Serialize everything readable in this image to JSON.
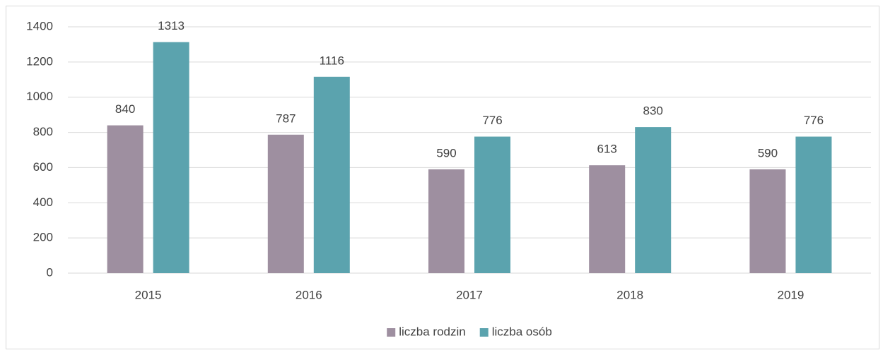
{
  "chart_data": {
    "type": "bar",
    "categories": [
      "2015",
      "2016",
      "2017",
      "2018",
      "2019"
    ],
    "series": [
      {
        "name": "liczba rodzin",
        "color": "#9e8fa0",
        "values": [
          840,
          787,
          590,
          613,
          590
        ]
      },
      {
        "name": "liczba osób",
        "color": "#5ba3ae",
        "values": [
          1313,
          1116,
          776,
          830,
          776
        ]
      }
    ],
    "ylim": [
      0,
      1400
    ],
    "yticks": [
      0,
      200,
      400,
      600,
      800,
      1000,
      1200,
      1400
    ],
    "grid": true,
    "legend": "bottom"
  }
}
